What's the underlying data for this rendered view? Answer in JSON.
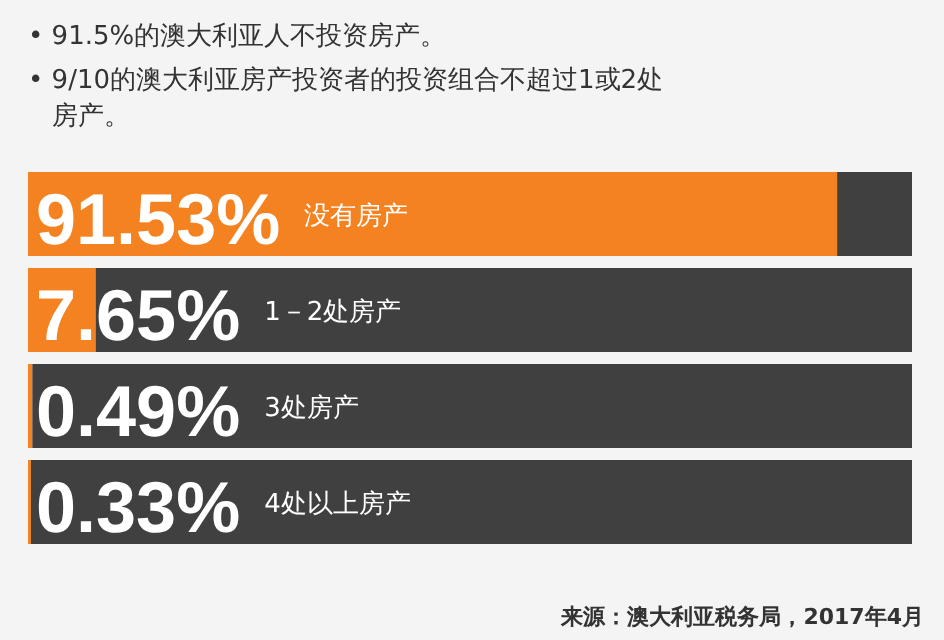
{
  "chart_data": {
    "type": "bar",
    "orientation": "horizontal",
    "stacked": true,
    "title": "• 91.5%的澳大利亚人不投资房产。",
    "subtitle": "• 9/10的澳大利亚房产投资者的投资组合不超过1或2处房产。",
    "categories": [
      "没有房产",
      "1－2处房产",
      "3处房产",
      "4处以上房产"
    ],
    "xlim": [
      0,
      100
    ],
    "series": [
      {
        "color": "#f58220",
        "values": [
          91.53,
          7.65,
          0.49,
          0.33
        ],
        "value_labels": [
          "91.53%",
          "7.65%",
          "0.49%",
          "0.33%"
        ]
      },
      {
        "color": "#404040",
        "values": [
          8.47,
          92.35,
          99.51,
          99.67
        ]
      }
    ],
    "annotations": [
      "来源：澳大利亚税务局，2017年4月"
    ]
  }
}
